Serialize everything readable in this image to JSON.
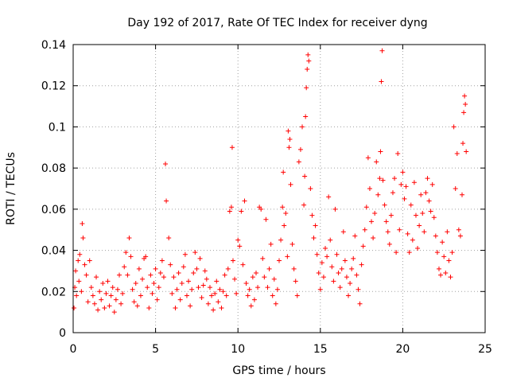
{
  "chart_data": {
    "type": "scatter",
    "title": "Day 192 of 2017, Rate Of TEC Index for receiver dyng",
    "xlabel": "GPS time / hours",
    "ylabel": "ROTI / TECUs",
    "xlim": [
      0,
      25
    ],
    "ylim": [
      0,
      0.14
    ],
    "xticks": [
      0,
      5,
      10,
      15,
      20,
      25
    ],
    "xtick_labels": [
      "0",
      "5",
      "10",
      "15",
      "20",
      "25"
    ],
    "yticks": [
      0,
      0.02,
      0.04,
      0.06,
      0.08,
      0.1,
      0.12,
      0.14
    ],
    "ytick_labels": [
      "0",
      "0.02",
      "0.04",
      "0.06",
      "0.08",
      "0.1",
      "0.12",
      "0.14"
    ],
    "grid": true,
    "marker": "+",
    "color": "#ff0000",
    "series": [
      {
        "name": "ROTI",
        "points": [
          [
            0.05,
            0.012
          ],
          [
            0.1,
            0.022
          ],
          [
            0.15,
            0.03
          ],
          [
            0.2,
            0.018
          ],
          [
            0.3,
            0.035
          ],
          [
            0.35,
            0.025
          ],
          [
            0.4,
            0.038
          ],
          [
            0.5,
            0.02
          ],
          [
            0.55,
            0.053
          ],
          [
            0.6,
            0.046
          ],
          [
            0.7,
            0.033
          ],
          [
            0.8,
            0.028
          ],
          [
            0.9,
            0.015
          ],
          [
            1.0,
            0.035
          ],
          [
            1.1,
            0.022
          ],
          [
            1.2,
            0.018
          ],
          [
            1.3,
            0.014
          ],
          [
            1.4,
            0.027
          ],
          [
            1.5,
            0.011
          ],
          [
            1.6,
            0.02
          ],
          [
            1.7,
            0.016
          ],
          [
            1.8,
            0.024
          ],
          [
            1.9,
            0.012
          ],
          [
            2.0,
            0.019
          ],
          [
            2.1,
            0.025
          ],
          [
            2.2,
            0.013
          ],
          [
            2.3,
            0.018
          ],
          [
            2.4,
            0.022
          ],
          [
            2.5,
            0.01
          ],
          [
            2.6,
            0.016
          ],
          [
            2.7,
            0.021
          ],
          [
            2.8,
            0.028
          ],
          [
            2.9,
            0.014
          ],
          [
            3.0,
            0.019
          ],
          [
            3.1,
            0.032
          ],
          [
            3.2,
            0.039
          ],
          [
            3.3,
            0.028
          ],
          [
            3.4,
            0.046
          ],
          [
            3.5,
            0.037
          ],
          [
            3.6,
            0.021
          ],
          [
            3.7,
            0.015
          ],
          [
            3.8,
            0.024
          ],
          [
            3.9,
            0.013
          ],
          [
            4.0,
            0.031
          ],
          [
            4.1,
            0.018
          ],
          [
            4.2,
            0.026
          ],
          [
            4.3,
            0.036
          ],
          [
            4.4,
            0.037
          ],
          [
            4.5,
            0.022
          ],
          [
            4.6,
            0.012
          ],
          [
            4.7,
            0.028
          ],
          [
            4.8,
            0.019
          ],
          [
            4.9,
            0.024
          ],
          [
            5.0,
            0.031
          ],
          [
            5.1,
            0.016
          ],
          [
            5.2,
            0.022
          ],
          [
            5.3,
            0.029
          ],
          [
            5.4,
            0.035
          ],
          [
            5.5,
            0.027
          ],
          [
            5.6,
            0.082
          ],
          [
            5.65,
            0.064
          ],
          [
            5.8,
            0.046
          ],
          [
            5.9,
            0.033
          ],
          [
            6.0,
            0.019
          ],
          [
            6.1,
            0.027
          ],
          [
            6.2,
            0.012
          ],
          [
            6.3,
            0.021
          ],
          [
            6.4,
            0.029
          ],
          [
            6.5,
            0.016
          ],
          [
            6.6,
            0.024
          ],
          [
            6.7,
            0.032
          ],
          [
            6.8,
            0.038
          ],
          [
            6.9,
            0.018
          ],
          [
            7.0,
            0.025
          ],
          [
            7.1,
            0.013
          ],
          [
            7.2,
            0.021
          ],
          [
            7.3,
            0.029
          ],
          [
            7.4,
            0.039
          ],
          [
            7.5,
            0.031
          ],
          [
            7.6,
            0.022
          ],
          [
            7.7,
            0.036
          ],
          [
            7.8,
            0.017
          ],
          [
            7.9,
            0.023
          ],
          [
            8.0,
            0.03
          ],
          [
            8.1,
            0.026
          ],
          [
            8.2,
            0.014
          ],
          [
            8.3,
            0.022
          ],
          [
            8.4,
            0.018
          ],
          [
            8.5,
            0.011
          ],
          [
            8.6,
            0.019
          ],
          [
            8.7,
            0.025
          ],
          [
            8.8,
            0.015
          ],
          [
            8.9,
            0.021
          ],
          [
            9.0,
            0.012
          ],
          [
            9.1,
            0.02
          ],
          [
            9.2,
            0.028
          ],
          [
            9.3,
            0.018
          ],
          [
            9.4,
            0.031
          ],
          [
            9.5,
            0.059
          ],
          [
            9.6,
            0.061
          ],
          [
            9.65,
            0.09
          ],
          [
            9.7,
            0.035
          ],
          [
            9.8,
            0.026
          ],
          [
            9.9,
            0.019
          ],
          [
            10.0,
            0.045
          ],
          [
            10.1,
            0.042
          ],
          [
            10.2,
            0.059
          ],
          [
            10.3,
            0.033
          ],
          [
            10.4,
            0.064
          ],
          [
            10.5,
            0.024
          ],
          [
            10.6,
            0.018
          ],
          [
            10.7,
            0.021
          ],
          [
            10.8,
            0.013
          ],
          [
            10.9,
            0.027
          ],
          [
            11.0,
            0.016
          ],
          [
            11.1,
            0.029
          ],
          [
            11.2,
            0.022
          ],
          [
            11.3,
            0.061
          ],
          [
            11.4,
            0.06
          ],
          [
            11.5,
            0.036
          ],
          [
            11.6,
            0.027
          ],
          [
            11.7,
            0.055
          ],
          [
            11.8,
            0.022
          ],
          [
            11.9,
            0.031
          ],
          [
            12.0,
            0.043
          ],
          [
            12.1,
            0.018
          ],
          [
            12.2,
            0.026
          ],
          [
            12.3,
            0.014
          ],
          [
            12.4,
            0.021
          ],
          [
            12.5,
            0.035
          ],
          [
            12.6,
            0.045
          ],
          [
            12.7,
            0.061
          ],
          [
            12.75,
            0.078
          ],
          [
            12.8,
            0.052
          ],
          [
            12.9,
            0.058
          ],
          [
            13.0,
            0.037
          ],
          [
            13.05,
            0.098
          ],
          [
            13.1,
            0.09
          ],
          [
            13.15,
            0.094
          ],
          [
            13.2,
            0.072
          ],
          [
            13.3,
            0.043
          ],
          [
            13.4,
            0.031
          ],
          [
            13.5,
            0.025
          ],
          [
            13.6,
            0.018
          ],
          [
            13.7,
            0.083
          ],
          [
            13.8,
            0.089
          ],
          [
            13.9,
            0.1
          ],
          [
            14.0,
            0.062
          ],
          [
            14.05,
            0.076
          ],
          [
            14.1,
            0.105
          ],
          [
            14.15,
            0.119
          ],
          [
            14.2,
            0.128
          ],
          [
            14.25,
            0.135
          ],
          [
            14.3,
            0.132
          ],
          [
            14.4,
            0.07
          ],
          [
            14.5,
            0.057
          ],
          [
            14.6,
            0.046
          ],
          [
            14.7,
            0.052
          ],
          [
            14.8,
            0.038
          ],
          [
            14.9,
            0.029
          ],
          [
            15.0,
            0.021
          ],
          [
            15.1,
            0.034
          ],
          [
            15.2,
            0.027
          ],
          [
            15.3,
            0.041
          ],
          [
            15.4,
            0.037
          ],
          [
            15.5,
            0.066
          ],
          [
            15.6,
            0.045
          ],
          [
            15.7,
            0.032
          ],
          [
            15.8,
            0.025
          ],
          [
            15.9,
            0.06
          ],
          [
            16.0,
            0.038
          ],
          [
            16.1,
            0.029
          ],
          [
            16.2,
            0.022
          ],
          [
            16.3,
            0.031
          ],
          [
            16.4,
            0.049
          ],
          [
            16.5,
            0.035
          ],
          [
            16.6,
            0.027
          ],
          [
            16.7,
            0.018
          ],
          [
            16.8,
            0.024
          ],
          [
            16.9,
            0.031
          ],
          [
            17.0,
            0.036
          ],
          [
            17.1,
            0.047
          ],
          [
            17.2,
            0.028
          ],
          [
            17.3,
            0.021
          ],
          [
            17.4,
            0.014
          ],
          [
            17.5,
            0.033
          ],
          [
            17.6,
            0.042
          ],
          [
            17.7,
            0.05
          ],
          [
            17.8,
            0.061
          ],
          [
            17.9,
            0.085
          ],
          [
            18.0,
            0.07
          ],
          [
            18.1,
            0.054
          ],
          [
            18.2,
            0.046
          ],
          [
            18.3,
            0.058
          ],
          [
            18.4,
            0.083
          ],
          [
            18.5,
            0.067
          ],
          [
            18.6,
            0.075
          ],
          [
            18.65,
            0.088
          ],
          [
            18.7,
            0.122
          ],
          [
            18.75,
            0.137
          ],
          [
            18.8,
            0.074
          ],
          [
            18.9,
            0.062
          ],
          [
            19.0,
            0.054
          ],
          [
            19.1,
            0.049
          ],
          [
            19.2,
            0.043
          ],
          [
            19.3,
            0.057
          ],
          [
            19.4,
            0.068
          ],
          [
            19.5,
            0.075
          ],
          [
            19.6,
            0.039
          ],
          [
            19.7,
            0.087
          ],
          [
            19.8,
            0.05
          ],
          [
            19.9,
            0.072
          ],
          [
            20.0,
            0.078
          ],
          [
            20.1,
            0.065
          ],
          [
            20.2,
            0.071
          ],
          [
            20.3,
            0.048
          ],
          [
            20.4,
            0.039
          ],
          [
            20.5,
            0.062
          ],
          [
            20.6,
            0.045
          ],
          [
            20.7,
            0.073
          ],
          [
            20.8,
            0.057
          ],
          [
            20.9,
            0.041
          ],
          [
            21.0,
            0.052
          ],
          [
            21.1,
            0.067
          ],
          [
            21.2,
            0.058
          ],
          [
            21.3,
            0.049
          ],
          [
            21.4,
            0.068
          ],
          [
            21.5,
            0.075
          ],
          [
            21.6,
            0.064
          ],
          [
            21.7,
            0.059
          ],
          [
            21.8,
            0.072
          ],
          [
            21.9,
            0.056
          ],
          [
            22.0,
            0.047
          ],
          [
            22.1,
            0.039
          ],
          [
            22.2,
            0.031
          ],
          [
            22.3,
            0.028
          ],
          [
            22.4,
            0.044
          ],
          [
            22.5,
            0.037
          ],
          [
            22.6,
            0.029
          ],
          [
            22.7,
            0.049
          ],
          [
            22.8,
            0.035
          ],
          [
            22.9,
            0.027
          ],
          [
            23.0,
            0.039
          ],
          [
            23.1,
            0.1
          ],
          [
            23.2,
            0.07
          ],
          [
            23.3,
            0.087
          ],
          [
            23.4,
            0.05
          ],
          [
            23.5,
            0.047
          ],
          [
            23.6,
            0.067
          ],
          [
            23.65,
            0.092
          ],
          [
            23.7,
            0.107
          ],
          [
            23.75,
            0.115
          ],
          [
            23.8,
            0.111
          ],
          [
            23.85,
            0.088
          ]
        ]
      }
    ]
  }
}
